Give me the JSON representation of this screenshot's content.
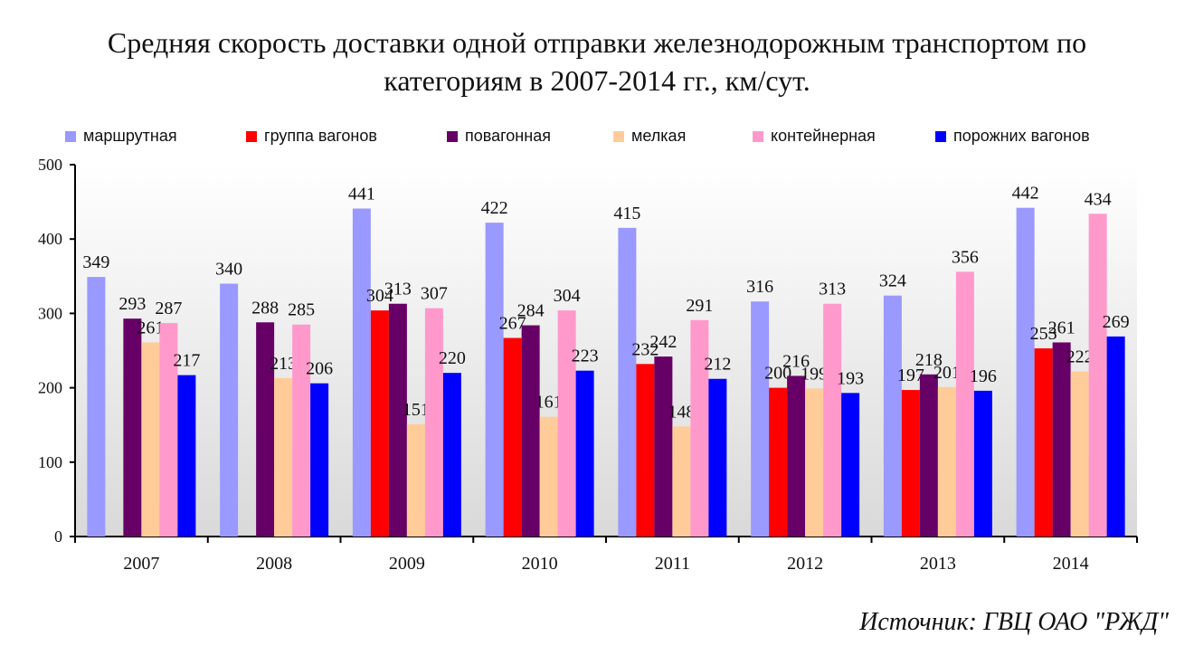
{
  "title_line1": "Средняя скорость доставки одной отправки железнодорожным транспортом по",
  "title_line2": "категориям в 2007-2014 гг., км/сут.",
  "source": "Источник: ГВЦ ОАО \"РЖД\"",
  "chart_data": {
    "type": "bar",
    "categories": [
      "2007",
      "2008",
      "2009",
      "2010",
      "2011",
      "2012",
      "2013",
      "2014"
    ],
    "ylim": [
      0,
      500
    ],
    "yticks": [
      0,
      100,
      200,
      300,
      400,
      500
    ],
    "grid": false,
    "legend_position": "top",
    "series": [
      {
        "name": "маршрутная",
        "color": "#9999ff",
        "values": [
          349,
          340,
          441,
          422,
          415,
          316,
          324,
          442
        ]
      },
      {
        "name": "группа вагонов",
        "color": "#ff0000",
        "values": [
          null,
          null,
          304,
          267,
          232,
          200,
          197,
          253
        ]
      },
      {
        "name": "повагонная",
        "color": "#660066",
        "values": [
          293,
          288,
          313,
          284,
          242,
          216,
          218,
          261
        ]
      },
      {
        "name": "мелкая",
        "color": "#ffcc99",
        "values": [
          261,
          213,
          151,
          161,
          148,
          199,
          201,
          222
        ]
      },
      {
        "name": "контейнерная",
        "color": "#ff99cc",
        "values": [
          287,
          285,
          307,
          304,
          291,
          313,
          356,
          434
        ]
      },
      {
        "name": "порожних вагонов",
        "color": "#0000ff",
        "values": [
          217,
          206,
          220,
          223,
          212,
          193,
          196,
          269
        ]
      }
    ]
  }
}
